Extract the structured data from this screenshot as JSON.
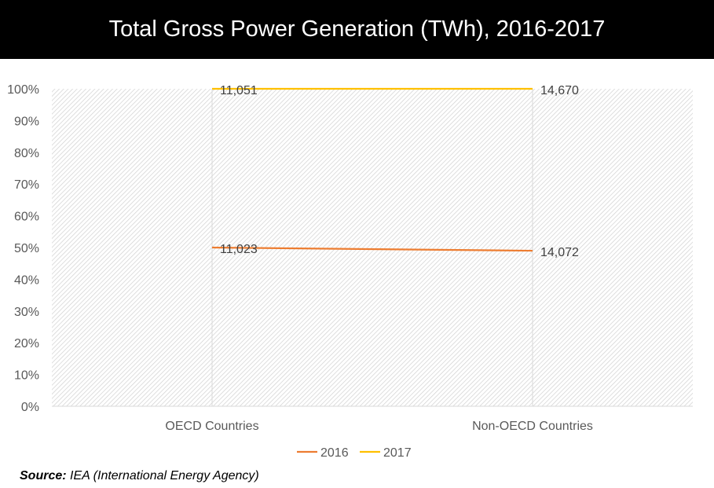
{
  "header": {
    "title": "Total Gross Power Generation (TWh), 2016-2017"
  },
  "source": {
    "label": "Source:",
    "text": " IEA (International Energy Agency)"
  },
  "chart_data": {
    "type": "line",
    "title": "Total Gross Power Generation (TWh), 2016-2017",
    "categories": [
      "OECD Countries",
      "Non-OECD Countries"
    ],
    "ylim": [
      0,
      100
    ],
    "yticks": [
      "0%",
      "10%",
      "20%",
      "30%",
      "40%",
      "50%",
      "60%",
      "70%",
      "80%",
      "90%",
      "100%"
    ],
    "grid": false,
    "legend_position": "bottom",
    "series": [
      {
        "name": "2016",
        "color": "#ED7D31",
        "values": [
          50,
          49
        ],
        "labels": [
          "11,023",
          "14,072"
        ]
      },
      {
        "name": "2017",
        "color": "#FFC000",
        "values": [
          100,
          100
        ],
        "labels": [
          "11,051",
          "14,670"
        ]
      }
    ]
  }
}
